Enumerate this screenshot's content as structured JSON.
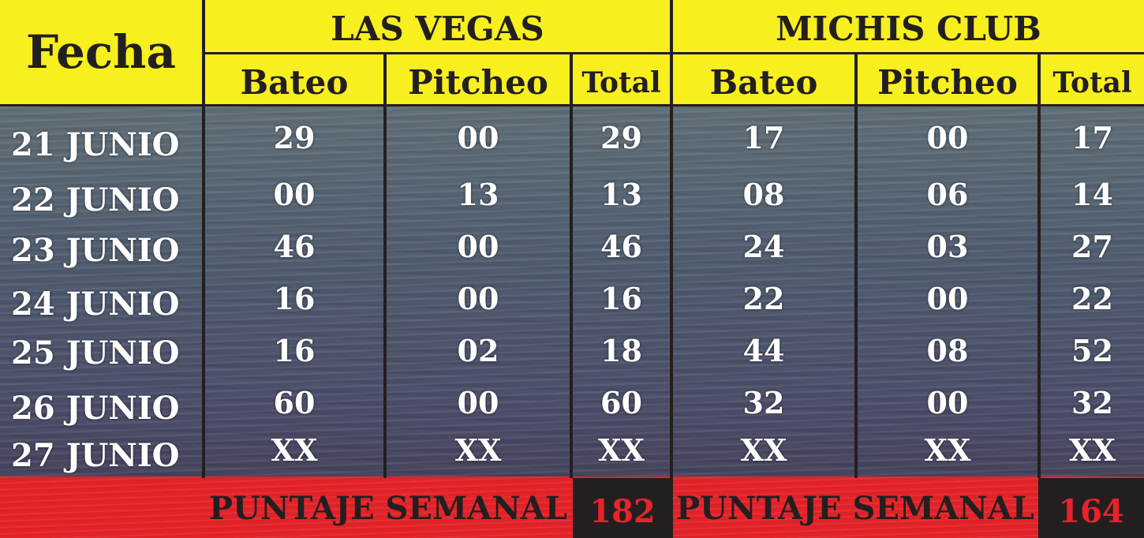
{
  "header": {
    "fecha_label": "Fecha",
    "teams": [
      {
        "name": "LAS VEGAS",
        "cols": [
          "Bateo",
          "Pitcheo",
          "Total"
        ],
        "weekly_label": "PUNTAJE SEMANAL",
        "weekly_score": "182"
      },
      {
        "name": "MICHIS CLUB",
        "cols": [
          "Bateo",
          "Pitcheo",
          "Total"
        ],
        "weekly_label": "PUNTAJE SEMANAL",
        "weekly_score": "164"
      }
    ]
  },
  "rows": [
    {
      "date": "21 JUNIO",
      "values": [
        "29",
        "00",
        "29",
        "17",
        "00",
        "17"
      ]
    },
    {
      "date": "22 JUNIO",
      "values": [
        "00",
        "13",
        "13",
        "08",
        "06",
        "14"
      ]
    },
    {
      "date": "23 JUNIO",
      "values": [
        "46",
        "00",
        "46",
        "24",
        "03",
        "27"
      ]
    },
    {
      "date": "24 JUNIO",
      "values": [
        "16",
        "00",
        "16",
        "22",
        "00",
        "22"
      ]
    },
    {
      "date": "25 JUNIO",
      "values": [
        "16",
        "02",
        "18",
        "44",
        "08",
        "52"
      ]
    },
    {
      "date": "26 JUNIO",
      "values": [
        "60",
        "00",
        "60",
        "32",
        "00",
        "32"
      ]
    },
    {
      "date": "27 JUNIO",
      "values": [
        "XX",
        "XX",
        "XX",
        "XX",
        "XX",
        "XX"
      ]
    }
  ],
  "colors": {
    "yellow": "#f7ef1e",
    "red": "#e8232a",
    "dark": "#231f20",
    "text_light": "#ffffff"
  }
}
